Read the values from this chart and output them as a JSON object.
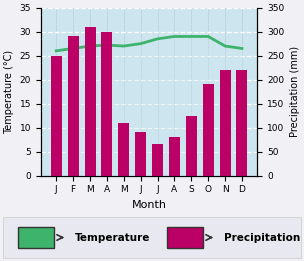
{
  "months": [
    "J",
    "F",
    "M",
    "A",
    "M",
    "J",
    "J",
    "A",
    "S",
    "O",
    "N",
    "D"
  ],
  "temperature": [
    26.0,
    26.5,
    27.0,
    27.2,
    27.0,
    27.5,
    28.5,
    29.0,
    29.0,
    29.0,
    27.0,
    26.5
  ],
  "precipitation": [
    250,
    290,
    310,
    300,
    110,
    90,
    65,
    80,
    125,
    190,
    220,
    220
  ],
  "temp_color": "#3db36b",
  "precip_color": "#bb0066",
  "fill_color": "#cce5ee",
  "bg_color": "#f0f0f5",
  "legend_bg": "#e8e8f0",
  "xlabel": "Month",
  "ylabel_left": "Temperature (°C)",
  "ylabel_right": "Precipitation (mm)",
  "ylim_left": [
    0,
    35
  ],
  "ylim_right": [
    0,
    350
  ],
  "yticks_left": [
    0,
    5,
    10,
    15,
    20,
    25,
    30,
    35
  ],
  "yticks_right": [
    0,
    50,
    100,
    150,
    200,
    250,
    300,
    350
  ],
  "legend_temp": "Temperature",
  "legend_precip": "Precipitation"
}
